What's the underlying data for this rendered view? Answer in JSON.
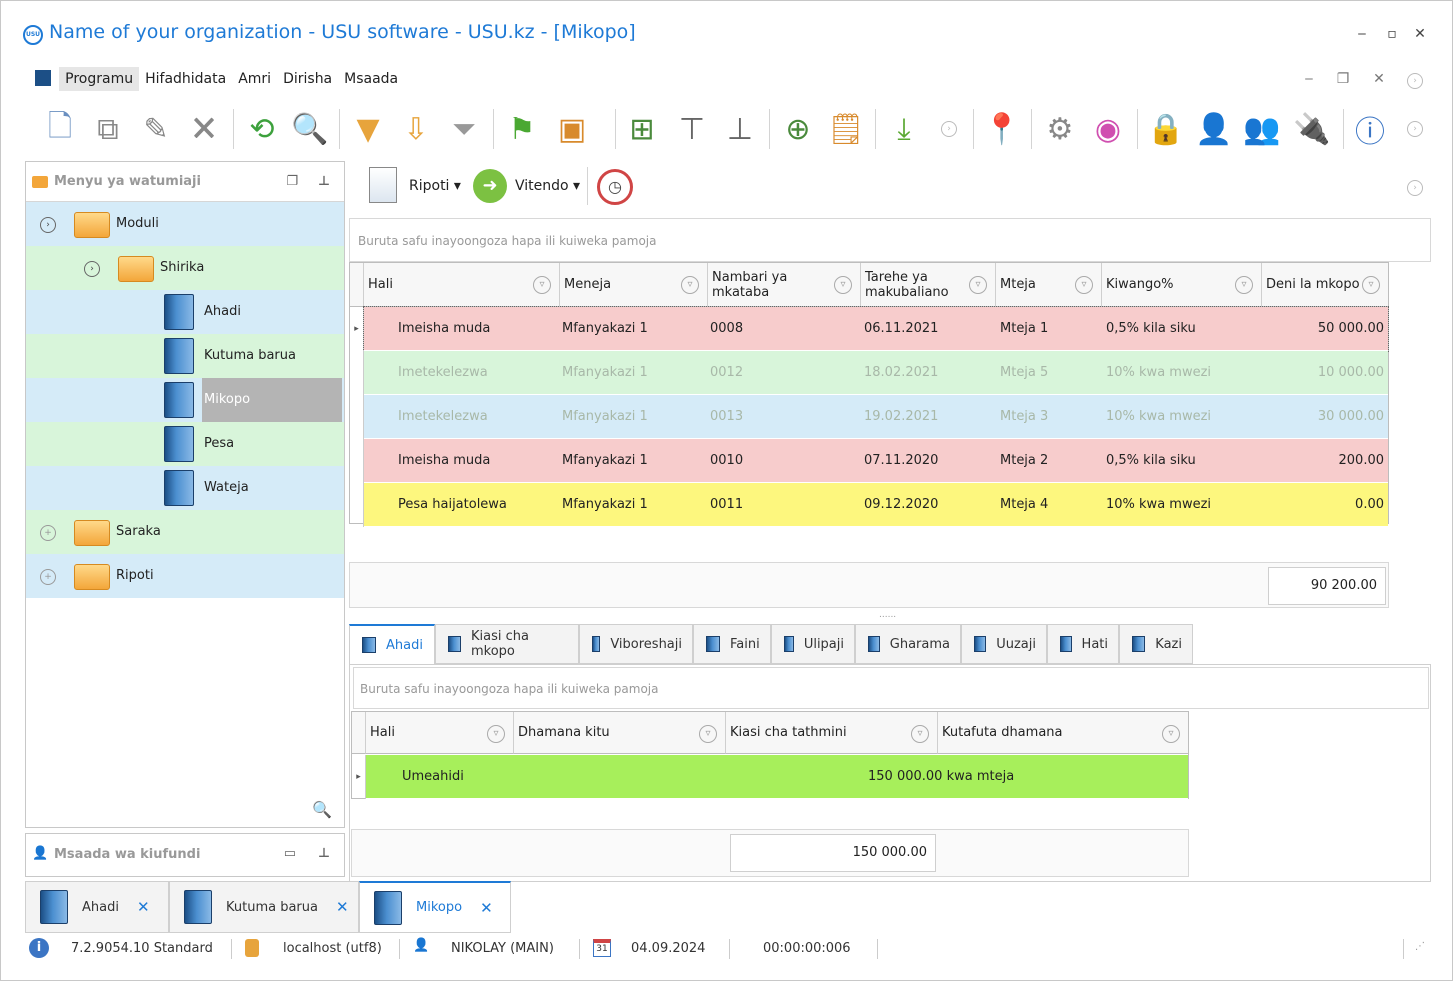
{
  "window": {
    "title": "Name of your organization - USU software - USU.kz - [Mikopo]",
    "logo_text": "USU"
  },
  "menu": [
    "Programu",
    "Hifadhidata",
    "Amri",
    "Dirisha",
    "Msaada"
  ],
  "left_panel": {
    "title": "Menyu ya watumiaji",
    "tree": [
      {
        "label": "Moduli",
        "type": "folder-open",
        "level": 0,
        "expanded": true
      },
      {
        "label": "Shirika",
        "type": "folder-open",
        "level": 1,
        "expanded": true
      },
      {
        "label": "Ahadi",
        "type": "book",
        "level": 2
      },
      {
        "label": "Kutuma barua",
        "type": "book",
        "level": 2
      },
      {
        "label": "Mikopo",
        "type": "book",
        "level": 2,
        "selected": true
      },
      {
        "label": "Pesa",
        "type": "book",
        "level": 2
      },
      {
        "label": "Wateja",
        "type": "book",
        "level": 2
      },
      {
        "label": "Saraka",
        "type": "folder",
        "level": 0
      },
      {
        "label": "Ripoti",
        "type": "folder",
        "level": 0
      }
    ]
  },
  "help_panel": {
    "title": "Msaada wa kiufundi"
  },
  "content_toolbar": {
    "reports": "Ripoti",
    "actions": "Vitendo"
  },
  "group_hint": "Buruta safu inayoongoza hapa ili kuiweka pamoja",
  "grid1": {
    "columns": [
      "Hali",
      "Meneja",
      "Nambari ya mkataba",
      "Tarehe ya makubaliano",
      "Mteja",
      "Kiwango%",
      "Deni la mkopo"
    ],
    "rows": [
      {
        "cells": [
          "Imeisha muda",
          "Mfanyakazi 1",
          "0008",
          "06.11.2021",
          "Mteja 1",
          "0,5% kila siku",
          "50 000.00"
        ],
        "color": "#f7cccc",
        "dim": false,
        "current": true
      },
      {
        "cells": [
          "Imetekelezwa",
          "Mfanyakazi 1",
          "0012",
          "18.02.2021",
          "Mteja 5",
          "10% kwa mwezi",
          "10 000.00"
        ],
        "color": "#d8f5da",
        "dim": true
      },
      {
        "cells": [
          "Imetekelezwa",
          "Mfanyakazi 1",
          "0013",
          "19.02.2021",
          "Mteja 3",
          "10% kwa mwezi",
          "30 000.00"
        ],
        "color": "#d5ebf8",
        "dim": true
      },
      {
        "cells": [
          "Imeisha muda",
          "Mfanyakazi 1",
          "0010",
          "07.11.2020",
          "Mteja 2",
          "0,5% kila siku",
          "200.00"
        ],
        "color": "#f7cccc",
        "dim": false
      },
      {
        "cells": [
          "Pesa haijatolewa",
          "Mfanyakazi 1",
          "0011",
          "09.12.2020",
          "Mteja 4",
          "10% kwa mwezi",
          "0.00"
        ],
        "color": "#fdf77e",
        "dim": false
      }
    ],
    "total": "90 200.00"
  },
  "detail_tabs": [
    "Ahadi",
    "Kiasi cha mkopo",
    "Viboreshaji",
    "Faini",
    "Ulipaji",
    "Gharama",
    "Uuzaji",
    "Hati",
    "Kazi"
  ],
  "grid2": {
    "columns": [
      "Hali",
      "Dhamana kitu",
      "Kiasi cha tathmini",
      "Kutafuta dhamana"
    ],
    "rows": [
      {
        "hali": "Umeahidi",
        "value": "150 000.00 kwa mteja",
        "color": "#a7ef5b"
      }
    ],
    "total": "150 000.00"
  },
  "doc_tabs": [
    "Ahadi",
    "Kutuma barua",
    "Mikopo"
  ],
  "status": {
    "version": "7.2.9054.10 Standard",
    "db": "localhost (utf8)",
    "user": "NIKOLAY (MAIN)",
    "date": "04.09.2024",
    "calendar_day": "31",
    "timer": "00:00:00:006"
  }
}
